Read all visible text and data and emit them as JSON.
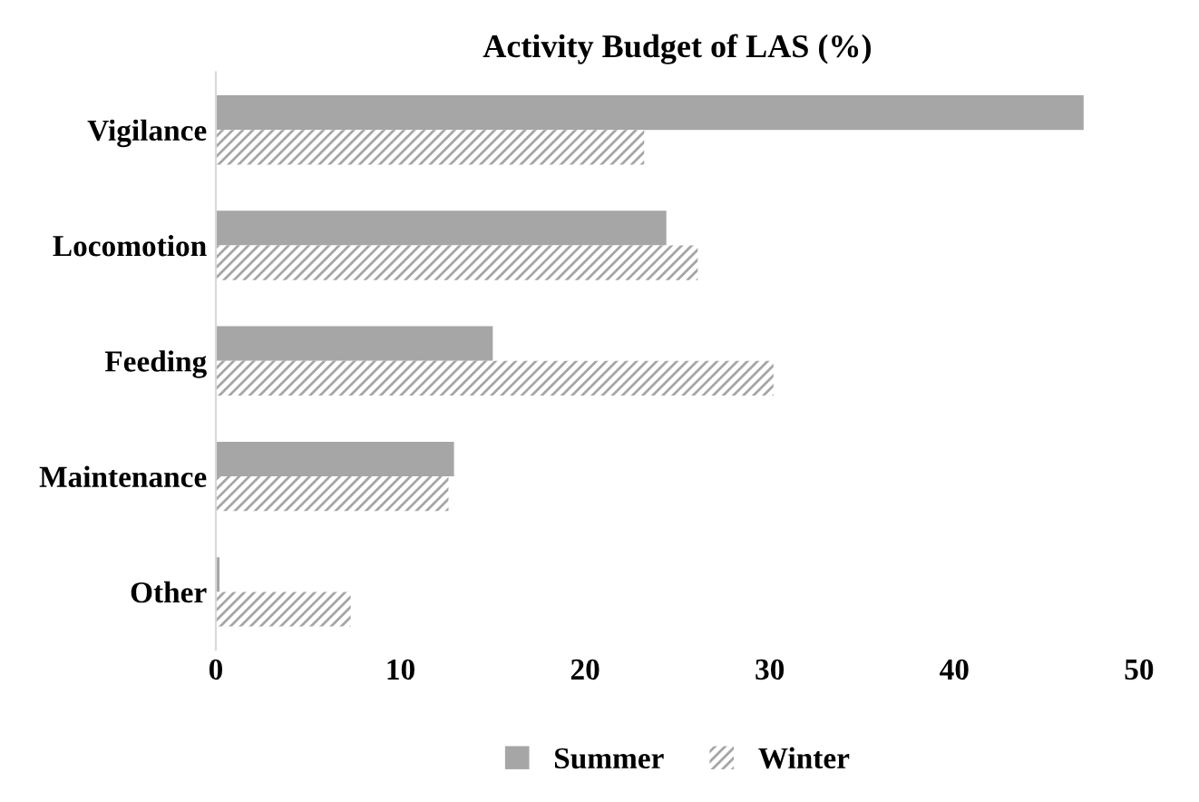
{
  "chart_data": {
    "type": "bar",
    "orientation": "horizontal",
    "title": "Activity Budget of LAS (%)",
    "categories": [
      "Vigilance",
      "Locomotion",
      "Feeding",
      "Maintenance",
      "Other"
    ],
    "series": [
      {
        "name": "Summer",
        "color": "#a6a6a6",
        "values": [
          47.0,
          24.4,
          15.0,
          12.9,
          0.2
        ]
      },
      {
        "name": "Winter",
        "color": "#a6a6a6",
        "values": [
          23.2,
          26.1,
          30.2,
          12.6,
          7.3
        ]
      }
    ],
    "xlim": [
      0,
      50
    ],
    "xticks": [
      0,
      10,
      20,
      30,
      40,
      50
    ],
    "grid": false,
    "legend": "bottom"
  }
}
